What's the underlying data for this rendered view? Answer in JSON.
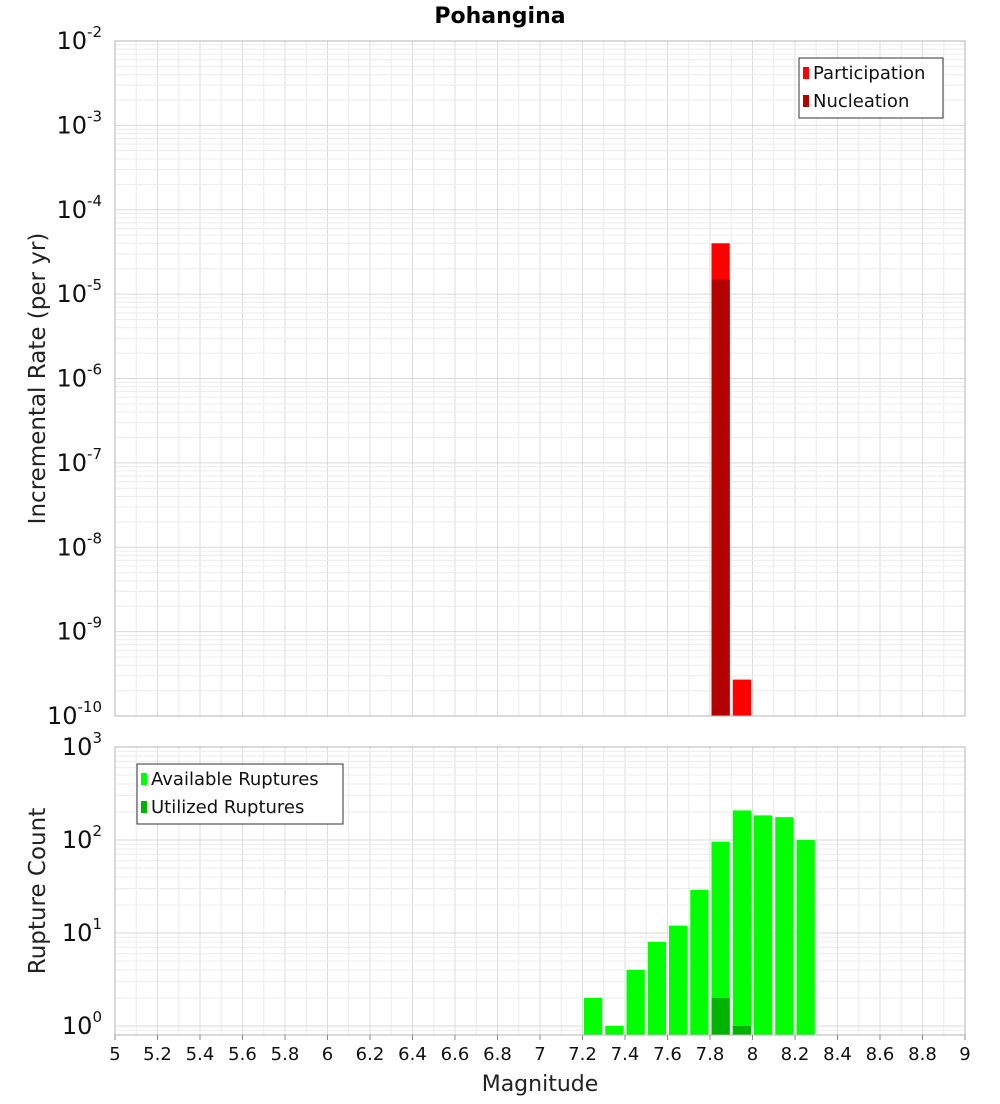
{
  "title": "Pohangina",
  "chart_data": [
    {
      "type": "bar",
      "id": "rate-panel",
      "ylabel": "Incremental Rate (per yr)",
      "xlabel": "",
      "y_scale": "log",
      "ylim": [
        1e-10,
        0.01
      ],
      "xlim": [
        5,
        9
      ],
      "y_tick_exponents": [
        "-2",
        "-3",
        "-4",
        "-5",
        "-6",
        "-7",
        "-8",
        "-9",
        "-10"
      ],
      "bin_width": 0.1,
      "grid": true,
      "legend_position": "top-right",
      "series": [
        {
          "name": "Participation",
          "color": "#ff0000",
          "points": [
            {
              "x": 7.85,
              "y": 4e-05
            },
            {
              "x": 7.95,
              "y": 2.7e-10
            }
          ]
        },
        {
          "name": "Nucleation",
          "color": "#b30000",
          "points": [
            {
              "x": 7.85,
              "y": 1.5e-05
            }
          ]
        }
      ]
    },
    {
      "type": "bar",
      "id": "count-panel",
      "ylabel": "Rupture Count",
      "xlabel": "Magnitude",
      "y_scale": "log",
      "ylim": [
        0.8,
        1000
      ],
      "xlim": [
        5,
        9
      ],
      "y_tick_exponents": [
        "3",
        "2",
        "1",
        "0"
      ],
      "x_ticks": [
        "5",
        "5.2",
        "5.4",
        "5.6",
        "5.8",
        "6",
        "6.2",
        "6.4",
        "6.6",
        "6.8",
        "7",
        "7.2",
        "7.4",
        "7.6",
        "7.8",
        "8",
        "8.2",
        "8.4",
        "8.6",
        "8.8",
        "9"
      ],
      "bin_width": 0.1,
      "grid": true,
      "legend_position": "top-left",
      "series": [
        {
          "name": "Available Ruptures",
          "color": "#00ff00",
          "points": [
            {
              "x": 7.25,
              "y": 2
            },
            {
              "x": 7.35,
              "y": 1
            },
            {
              "x": 7.45,
              "y": 4
            },
            {
              "x": 7.55,
              "y": 8
            },
            {
              "x": 7.65,
              "y": 12
            },
            {
              "x": 7.75,
              "y": 29
            },
            {
              "x": 7.85,
              "y": 96
            },
            {
              "x": 7.95,
              "y": 208
            },
            {
              "x": 8.05,
              "y": 184
            },
            {
              "x": 8.15,
              "y": 176
            },
            {
              "x": 8.25,
              "y": 100
            }
          ]
        },
        {
          "name": "Utilized Ruptures",
          "color": "#00b300",
          "points": [
            {
              "x": 7.85,
              "y": 2
            },
            {
              "x": 7.95,
              "y": 1
            }
          ]
        }
      ]
    }
  ]
}
